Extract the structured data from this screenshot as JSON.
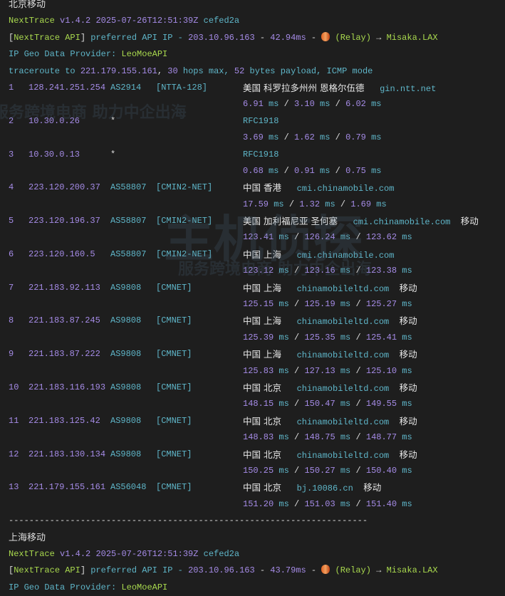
{
  "sections": [
    {
      "title": "北京移动",
      "version": {
        "name": "NextTrace",
        "ver": "v1.4.2",
        "date": "2025-07-26T12:51:39Z",
        "hash": "cefed2a"
      },
      "api": {
        "tag": "NextTrace API",
        "text": "preferred API IP -",
        "ip": "203.10.96.163",
        "latency": "42.94ms",
        "relay": "(Relay)",
        "arrow": "→",
        "target": "Misaka.LAX"
      },
      "provider": {
        "label": "IP Geo Data Provider:",
        "value": "LeoMoeAPI"
      },
      "traceroute": {
        "prefix": "traceroute to",
        "ip": "221.179.155.161",
        "hops": "30",
        "hops_text": "hops max,",
        "bytes": "52",
        "bytes_text": "bytes payload,",
        "mode": "ICMP mode"
      },
      "hops": [
        {
          "n": "1",
          "ip": "128.241.251.254",
          "asn": "AS2914",
          "net": "[NTTA-128]",
          "geo": "美国 科罗拉多州州 恩格尔伍德",
          "domain": "gin.ntt.net",
          "isp": "",
          "rtt": [
            "6.91",
            "3.10",
            "6.02"
          ]
        },
        {
          "n": "2",
          "ip": "10.30.0.26",
          "asn": "*",
          "net": "",
          "geo": "",
          "domain": "RFC1918",
          "isp": "",
          "rtt": [
            "3.69",
            "1.62",
            "0.79"
          ]
        },
        {
          "n": "3",
          "ip": "10.30.0.13",
          "asn": "*",
          "net": "",
          "geo": "",
          "domain": "RFC1918",
          "isp": "",
          "rtt": [
            "0.68",
            "0.91",
            "0.75"
          ]
        },
        {
          "n": "4",
          "ip": "223.120.200.37",
          "asn": "AS58807",
          "net": "[CMIN2-NET]",
          "geo": "中国 香港",
          "domain": "cmi.chinamobile.com",
          "isp": "",
          "rtt": [
            "17.59",
            "1.32",
            "1.69"
          ]
        },
        {
          "n": "5",
          "ip": "223.120.196.37",
          "asn": "AS58807",
          "net": "[CMIN2-NET]",
          "geo": "美国 加利福尼亚 圣何塞",
          "domain": "cmi.chinamobile.com",
          "isp": "移动",
          "rtt": [
            "123.41",
            "126.24",
            "123.62"
          ]
        },
        {
          "n": "6",
          "ip": "223.120.160.5",
          "asn": "AS58807",
          "net": "[CMIN2-NET]",
          "geo": "中国 上海",
          "domain": "cmi.chinamobile.com",
          "isp": "",
          "rtt": [
            "123.12",
            "123.16",
            "123.38"
          ]
        },
        {
          "n": "7",
          "ip": "221.183.92.113",
          "asn": "AS9808",
          "net": "[CMNET]",
          "geo": "中国 上海",
          "domain": "chinamobileltd.com",
          "isp": "移动",
          "rtt": [
            "125.15",
            "125.19",
            "125.27"
          ]
        },
        {
          "n": "8",
          "ip": "221.183.87.245",
          "asn": "AS9808",
          "net": "[CMNET]",
          "geo": "中国 上海",
          "domain": "chinamobileltd.com",
          "isp": "移动",
          "rtt": [
            "125.39",
            "125.35",
            "125.41"
          ]
        },
        {
          "n": "9",
          "ip": "221.183.87.222",
          "asn": "AS9808",
          "net": "[CMNET]",
          "geo": "中国 上海",
          "domain": "chinamobileltd.com",
          "isp": "移动",
          "rtt": [
            "125.83",
            "127.13",
            "125.10"
          ]
        },
        {
          "n": "10",
          "ip": "221.183.116.193",
          "asn": "AS9808",
          "net": "[CMNET]",
          "geo": "中国 北京",
          "domain": "chinamobileltd.com",
          "isp": "移动",
          "rtt": [
            "148.15",
            "150.47",
            "149.55"
          ]
        },
        {
          "n": "11",
          "ip": "221.183.125.42",
          "asn": "AS9808",
          "net": "[CMNET]",
          "geo": "中国 北京",
          "domain": "chinamobileltd.com",
          "isp": "移动",
          "rtt": [
            "148.83",
            "148.75",
            "148.77"
          ]
        },
        {
          "n": "12",
          "ip": "221.183.130.134",
          "asn": "AS9808",
          "net": "[CMNET]",
          "geo": "中国 北京",
          "domain": "chinamobileltd.com",
          "isp": "移动",
          "rtt": [
            "150.25",
            "150.27",
            "150.40"
          ]
        },
        {
          "n": "13",
          "ip": "221.179.155.161",
          "asn": "AS56048",
          "net": "[CMNET]",
          "geo": "中国 北京",
          "domain": "bj.10086.cn",
          "isp": "移动",
          "rtt": [
            "151.20",
            "151.03",
            "151.40"
          ]
        }
      ],
      "separator": "----------------------------------------------------------------------"
    },
    {
      "title": "上海移动",
      "version": {
        "name": "NextTrace",
        "ver": "v1.4.2",
        "date": "2025-07-26T12:51:39Z",
        "hash": "cefed2a"
      },
      "api": {
        "tag": "NextTrace API",
        "text": "preferred API IP -",
        "ip": "203.10.96.163",
        "latency": "43.79ms",
        "relay": "(Relay)",
        "arrow": "→",
        "target": "Misaka.LAX"
      },
      "provider": {
        "label": "IP Geo Data Provider:",
        "value": "LeoMoeAPI"
      }
    }
  ],
  "rtt_unit": "ms",
  "watermark": {
    "brand": "主机侦探",
    "slogan": "服务跨境电商 助力中企出海"
  },
  "colors": {
    "background": "#1e1e1e",
    "green": "#a9d94e",
    "purple": "#a58be6",
    "cyan": "#5fb6c9",
    "text": "#dcdcdc"
  }
}
